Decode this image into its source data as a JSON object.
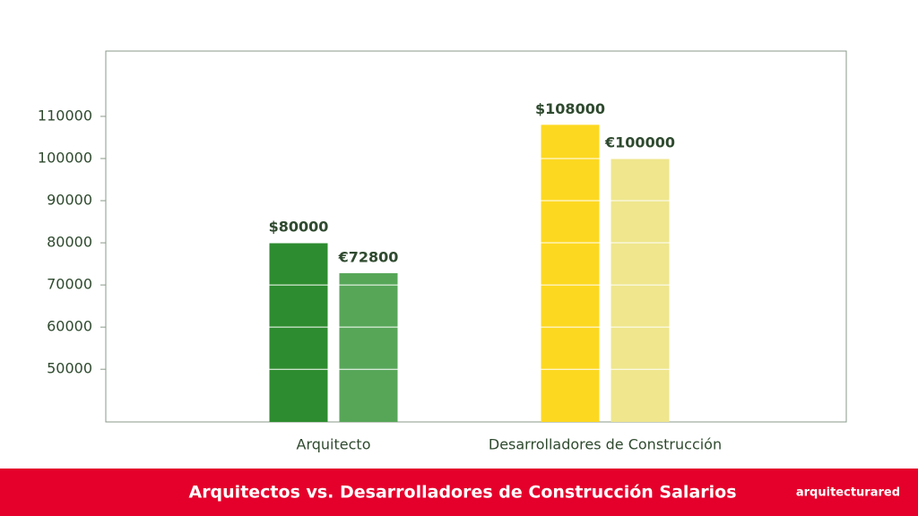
{
  "chart_data": {
    "type": "bar",
    "title": "Arquitectos vs. Desarrolladores de Construcción Salarios",
    "brand": "arquitecturared",
    "categories": [
      "Arquitecto",
      "Desarrolladores de Construcción"
    ],
    "series": [
      {
        "colors": [
          "#2d8c2f",
          "#fdd821"
        ],
        "values": [
          80000,
          108000
        ],
        "value_labels": [
          "$80000",
          "$108000"
        ]
      },
      {
        "colors": [
          "#57a658",
          "#efe68d"
        ],
        "values": [
          72800,
          100000
        ],
        "value_labels": [
          "€72800",
          "€100000"
        ]
      }
    ],
    "ylim": [
      37500,
      125500
    ],
    "yticks": [
      50000,
      60000,
      70000,
      80000,
      90000,
      100000,
      110000
    ],
    "grid": true
  }
}
